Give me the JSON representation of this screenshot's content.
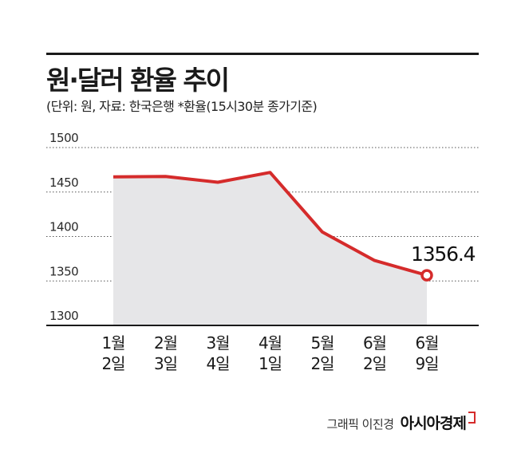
{
  "title": "원·달러 환율 추이",
  "subtitle": "(단위: 원, 자료: 한국은행  *환율(15시30분 종가기준)",
  "credit": "그래픽 이진경",
  "brand": "아시아경제",
  "colors": {
    "line": "#d52b2b",
    "area": "#e6e6e8",
    "grid": "#555555"
  },
  "chart_data": {
    "type": "area",
    "title": "원·달러 환율 추이",
    "xlabel": "",
    "ylabel": "",
    "ylim": [
      1300,
      1500
    ],
    "yticks": [
      1500,
      1450,
      1400,
      1350,
      1300
    ],
    "grid": true,
    "categories": [
      {
        "month": "1월",
        "day": "2일"
      },
      {
        "month": "2월",
        "day": "3일"
      },
      {
        "month": "3월",
        "day": "4일"
      },
      {
        "month": "4월",
        "day": "1일"
      },
      {
        "month": "5월",
        "day": "2일"
      },
      {
        "month": "6월",
        "day": "2일"
      },
      {
        "month": "6월",
        "day": "9일"
      }
    ],
    "values": [
      1467,
      1467.5,
      1461,
      1472,
      1405,
      1373,
      1356.4
    ],
    "annotation": "1356.4"
  }
}
